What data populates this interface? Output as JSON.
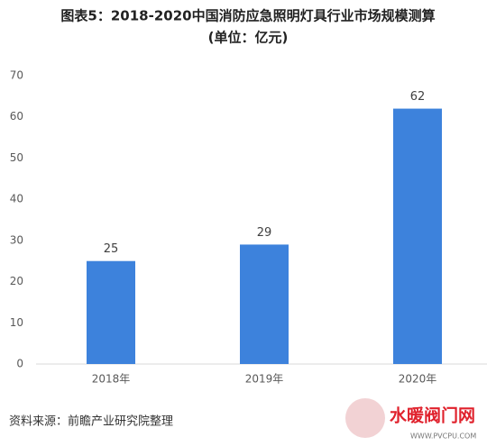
{
  "chart_data": {
    "type": "bar",
    "title": "图表5：2018-2020中国消防应急照明灯具行业市场规模测算",
    "subtitle": "(单位：亿元)",
    "categories": [
      "2018年",
      "2019年",
      "2020年"
    ],
    "values": [
      25,
      29,
      62
    ],
    "color": "#3d82dc",
    "ylim": [
      0,
      70
    ],
    "yticks": [
      0,
      10,
      20,
      30,
      40,
      50,
      60,
      70
    ],
    "grid": false,
    "source": "资料来源：前瞻产业研究院整理"
  },
  "footer_logo": {
    "name": "水暖阀门网",
    "url": "WWW.PVCPU.COM"
  }
}
